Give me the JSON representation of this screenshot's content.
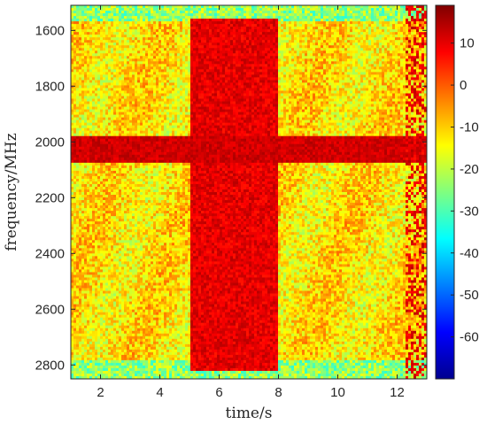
{
  "chart_data": {
    "type": "heatmap",
    "title": "",
    "xlabel": "time/s",
    "ylabel": "frequency/MHz",
    "xlim": [
      1,
      13
    ],
    "ylim": [
      1510,
      2850
    ],
    "y_axis_direction": "reversed",
    "x_ticks": [
      {
        "value": 2,
        "label": "2"
      },
      {
        "value": 4,
        "label": "4"
      },
      {
        "value": 6,
        "label": "6"
      },
      {
        "value": 8,
        "label": "8"
      },
      {
        "value": 10,
        "label": "10"
      },
      {
        "value": 12,
        "label": "12"
      }
    ],
    "y_ticks": [
      {
        "value": 1600,
        "label": "1600"
      },
      {
        "value": 1800,
        "label": "1800"
      },
      {
        "value": 2000,
        "label": "2000"
      },
      {
        "value": 2200,
        "label": "2200"
      },
      {
        "value": 2400,
        "label": "2400"
      },
      {
        "value": 2600,
        "label": "2600"
      },
      {
        "value": 2800,
        "label": "2800"
      }
    ],
    "colorbar": {
      "colormap": "jet",
      "range": [
        -70,
        19
      ],
      "ticks": [
        {
          "value": 10,
          "label": "10"
        },
        {
          "value": 0,
          "label": "0"
        },
        {
          "value": -10,
          "label": "-10"
        },
        {
          "value": -20,
          "label": "-20"
        },
        {
          "value": -30,
          "label": "-30"
        },
        {
          "value": -40,
          "label": "-40"
        },
        {
          "value": -50,
          "label": "-50"
        },
        {
          "value": -60,
          "label": "-60"
        }
      ]
    },
    "features": [
      {
        "kind": "horizontal-band",
        "frequency_range_mhz": [
          1975,
          2070
        ],
        "level": 12
      },
      {
        "kind": "vertical-burst",
        "time_range_s": [
          5.0,
          8.0
        ],
        "frequency_range_mhz": [
          1560,
          2820
        ],
        "level": 10
      },
      {
        "kind": "background",
        "level": -12
      },
      {
        "kind": "band-edges",
        "frequency_range_mhz": [
          1510,
          1570
        ],
        "level": -24
      },
      {
        "kind": "band-edges",
        "frequency_range_mhz": [
          2780,
          2850
        ],
        "level": -24
      }
    ]
  }
}
